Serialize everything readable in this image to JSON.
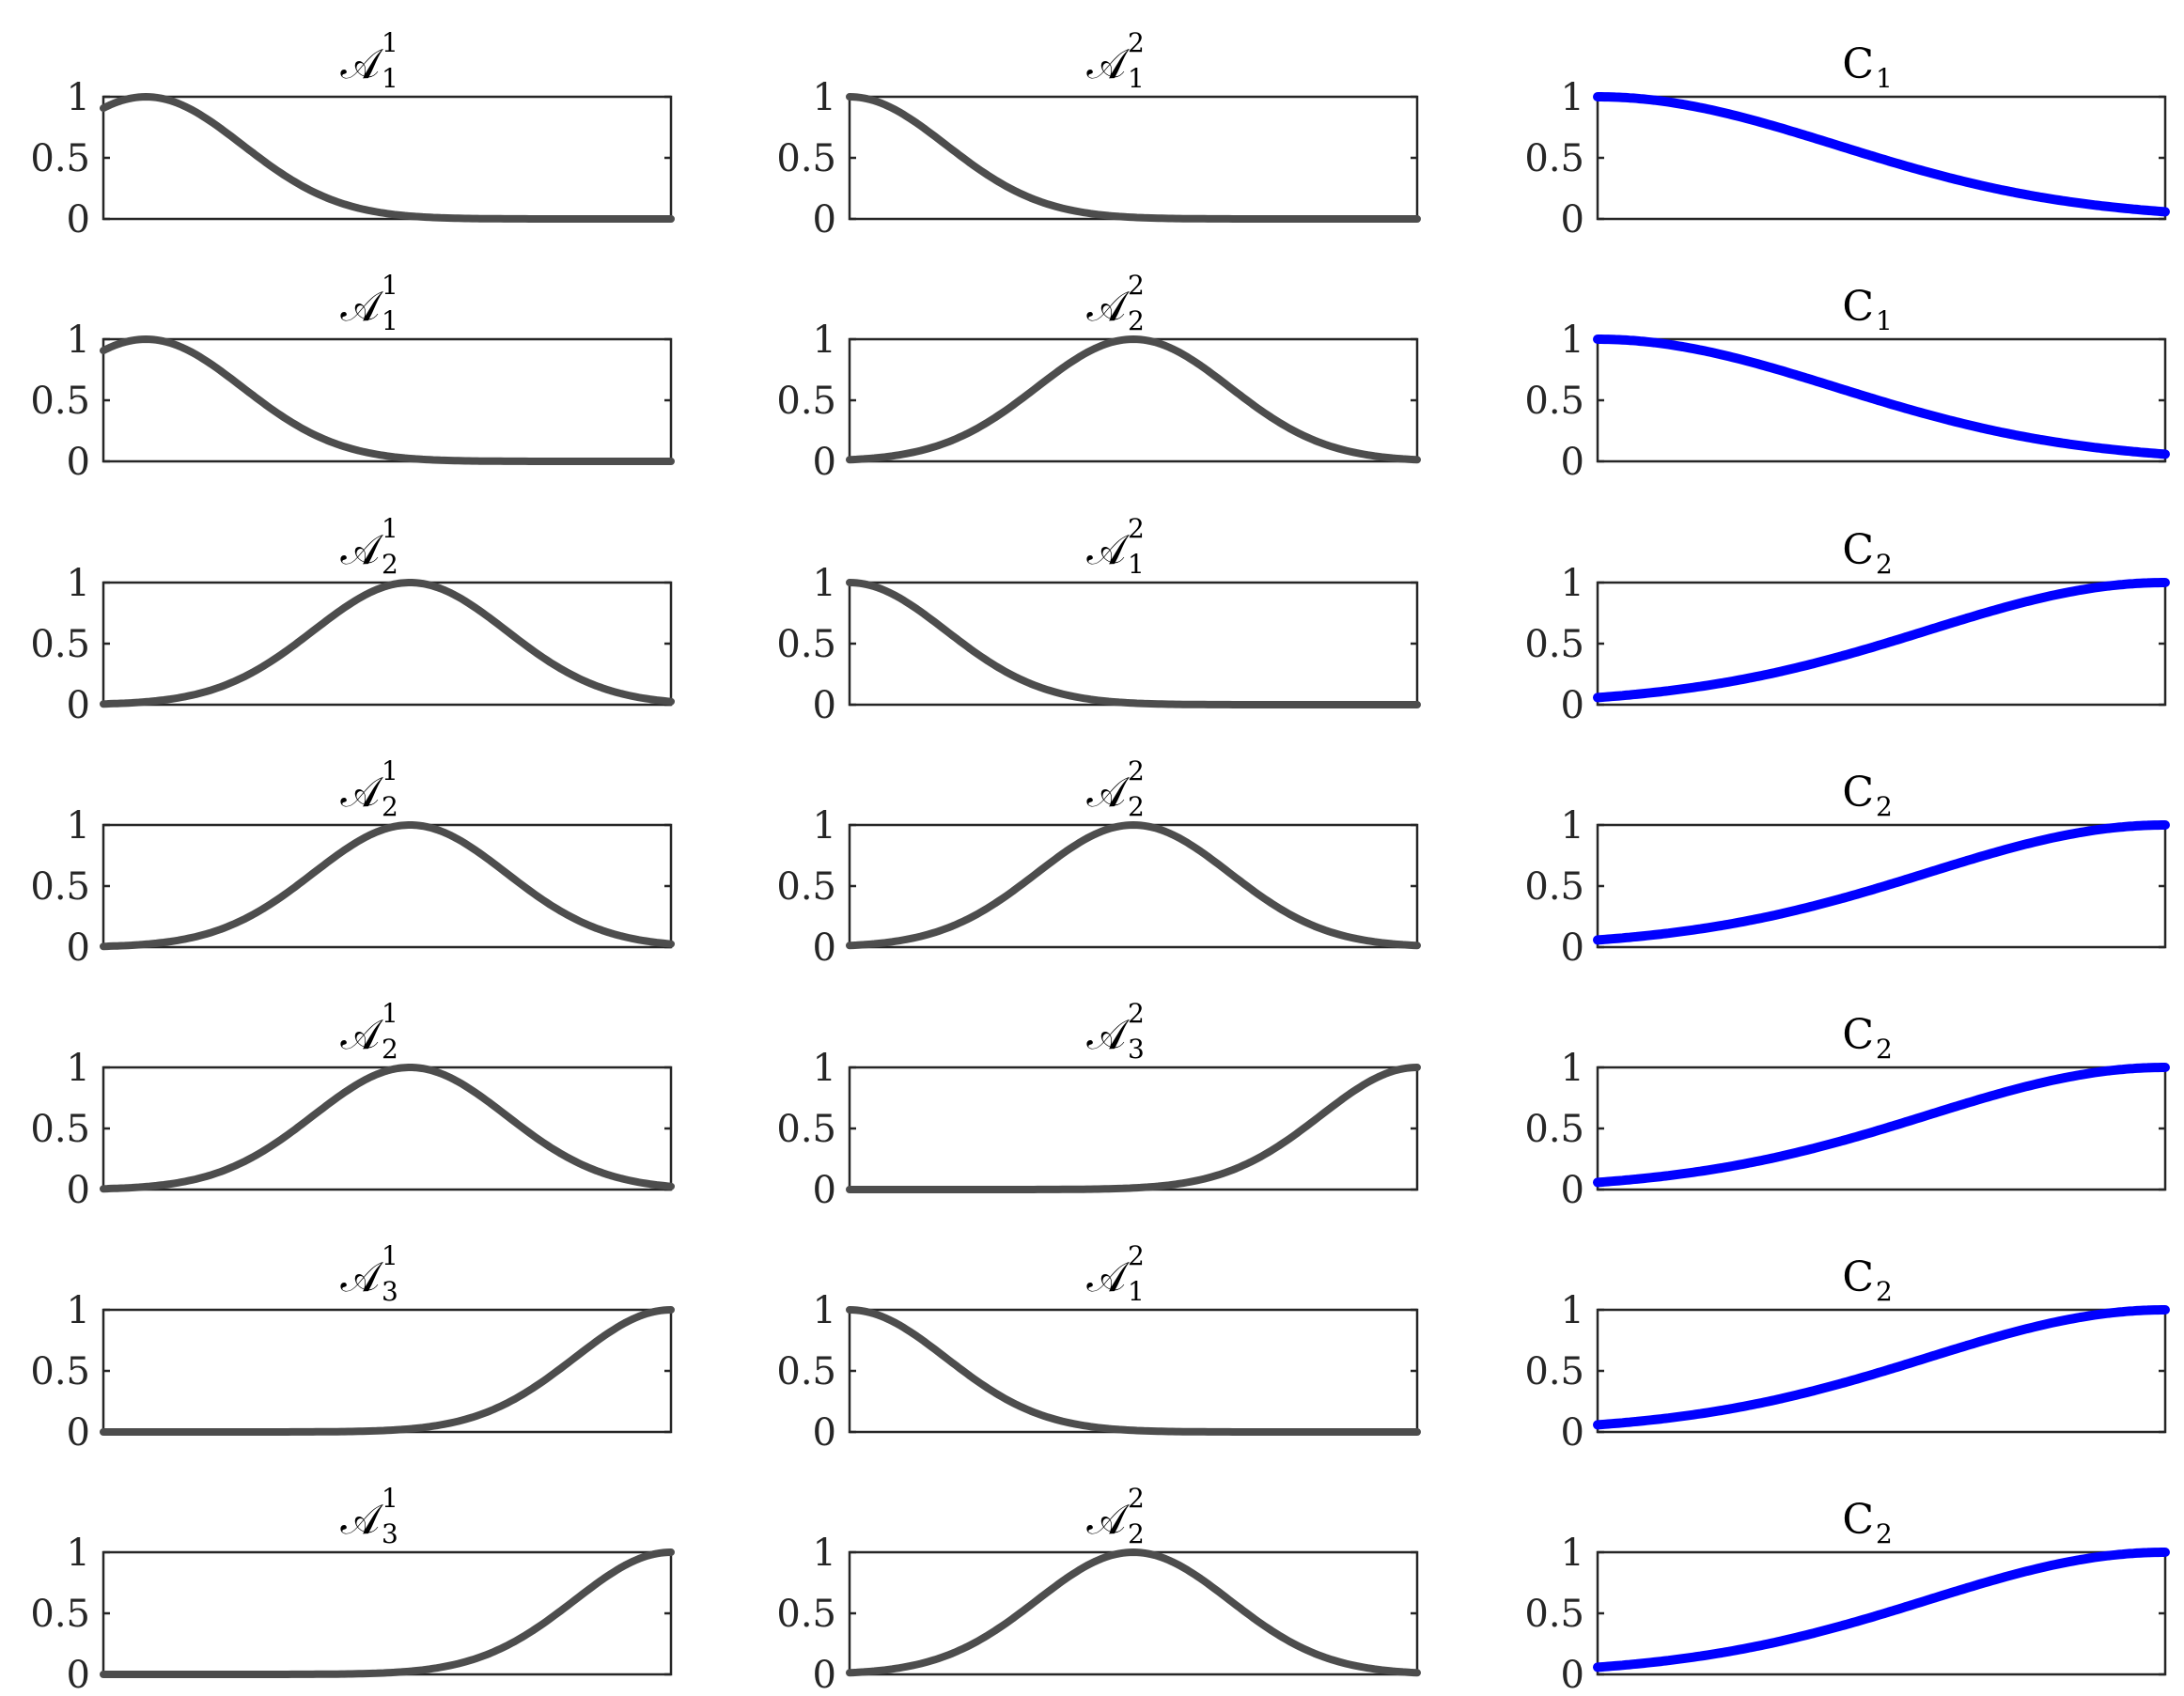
{
  "figure": {
    "rows": 7,
    "cols": 3
  },
  "chart_data": [
    {
      "type": "line",
      "panel": "r1c1",
      "title": {
        "main": "𝒜",
        "sub": "1",
        "sup": "1"
      },
      "curve": {
        "kind": "gauss",
        "center": 0.075,
        "width": 0.17
      },
      "ylim": [
        0,
        1
      ],
      "yticks": [
        "0",
        "0.5",
        "1"
      ],
      "color": "#4d4d4d"
    },
    {
      "type": "line",
      "panel": "r1c2",
      "title": {
        "main": "𝒜",
        "sub": "1",
        "sup": "2"
      },
      "curve": {
        "kind": "gauss",
        "center": 0.0,
        "width": 0.17
      },
      "ylim": [
        0,
        1
      ],
      "yticks": [
        "0",
        "0.5",
        "1"
      ],
      "color": "#4d4d4d"
    },
    {
      "type": "line",
      "panel": "r1c3",
      "title": {
        "main": "C",
        "sub": "1",
        "sup": ""
      },
      "curve": {
        "kind": "gauss",
        "center": 0.0,
        "width": 0.42
      },
      "ylim": [
        0,
        1
      ],
      "yticks": [
        "0",
        "0.5",
        "1"
      ],
      "color": "#0000ff"
    },
    {
      "type": "line",
      "panel": "r2c1",
      "title": {
        "main": "𝒜",
        "sub": "1",
        "sup": "1"
      },
      "curve": {
        "kind": "gauss",
        "center": 0.075,
        "width": 0.17
      },
      "ylim": [
        0,
        1
      ],
      "yticks": [
        "0",
        "0.5",
        "1"
      ],
      "color": "#4d4d4d"
    },
    {
      "type": "line",
      "panel": "r2c2",
      "title": {
        "main": "𝒜",
        "sub": "2",
        "sup": "2"
      },
      "curve": {
        "kind": "gauss",
        "center": 0.5,
        "width": 0.17
      },
      "ylim": [
        0,
        1
      ],
      "yticks": [
        "0",
        "0.5",
        "1"
      ],
      "color": "#4d4d4d"
    },
    {
      "type": "line",
      "panel": "r2c3",
      "title": {
        "main": "C",
        "sub": "1",
        "sup": ""
      },
      "curve": {
        "kind": "gauss",
        "center": 0.0,
        "width": 0.42
      },
      "ylim": [
        0,
        1
      ],
      "yticks": [
        "0",
        "0.5",
        "1"
      ],
      "color": "#0000ff"
    },
    {
      "type": "line",
      "panel": "r3c1",
      "title": {
        "main": "𝒜",
        "sub": "2",
        "sup": "1"
      },
      "curve": {
        "kind": "gauss",
        "center": 0.54,
        "width": 0.17
      },
      "ylim": [
        0,
        1
      ],
      "yticks": [
        "0",
        "0.5",
        "1"
      ],
      "color": "#4d4d4d"
    },
    {
      "type": "line",
      "panel": "r3c2",
      "title": {
        "main": "𝒜",
        "sub": "1",
        "sup": "2"
      },
      "curve": {
        "kind": "gauss",
        "center": 0.0,
        "width": 0.17
      },
      "ylim": [
        0,
        1
      ],
      "yticks": [
        "0",
        "0.5",
        "1"
      ],
      "color": "#4d4d4d"
    },
    {
      "type": "line",
      "panel": "r3c3",
      "title": {
        "main": "C",
        "sub": "2",
        "sup": ""
      },
      "curve": {
        "kind": "gauss",
        "center": 1.0,
        "width": 0.42
      },
      "ylim": [
        0,
        1
      ],
      "yticks": [
        "0",
        "0.5",
        "1"
      ],
      "color": "#0000ff"
    },
    {
      "type": "line",
      "panel": "r4c1",
      "title": {
        "main": "𝒜",
        "sub": "2",
        "sup": "1"
      },
      "curve": {
        "kind": "gauss",
        "center": 0.54,
        "width": 0.17
      },
      "ylim": [
        0,
        1
      ],
      "yticks": [
        "0",
        "0.5",
        "1"
      ],
      "color": "#4d4d4d"
    },
    {
      "type": "line",
      "panel": "r4c2",
      "title": {
        "main": "𝒜",
        "sub": "2",
        "sup": "2"
      },
      "curve": {
        "kind": "gauss",
        "center": 0.5,
        "width": 0.17
      },
      "ylim": [
        0,
        1
      ],
      "yticks": [
        "0",
        "0.5",
        "1"
      ],
      "color": "#4d4d4d"
    },
    {
      "type": "line",
      "panel": "r4c3",
      "title": {
        "main": "C",
        "sub": "2",
        "sup": ""
      },
      "curve": {
        "kind": "gauss",
        "center": 1.0,
        "width": 0.42
      },
      "ylim": [
        0,
        1
      ],
      "yticks": [
        "0",
        "0.5",
        "1"
      ],
      "color": "#0000ff"
    },
    {
      "type": "line",
      "panel": "r5c1",
      "title": {
        "main": "𝒜",
        "sub": "2",
        "sup": "1"
      },
      "curve": {
        "kind": "gauss",
        "center": 0.54,
        "width": 0.17
      },
      "ylim": [
        0,
        1
      ],
      "yticks": [
        "0",
        "0.5",
        "1"
      ],
      "color": "#4d4d4d"
    },
    {
      "type": "line",
      "panel": "r5c2",
      "title": {
        "main": "𝒜",
        "sub": "3",
        "sup": "2"
      },
      "curve": {
        "kind": "gauss",
        "center": 1.0,
        "width": 0.17
      },
      "ylim": [
        0,
        1
      ],
      "yticks": [
        "0",
        "0.5",
        "1"
      ],
      "color": "#4d4d4d"
    },
    {
      "type": "line",
      "panel": "r5c3",
      "title": {
        "main": "C",
        "sub": "2",
        "sup": ""
      },
      "curve": {
        "kind": "gauss",
        "center": 1.0,
        "width": 0.42
      },
      "ylim": [
        0,
        1
      ],
      "yticks": [
        "0",
        "0.5",
        "1"
      ],
      "color": "#0000ff"
    },
    {
      "type": "line",
      "panel": "r6c1",
      "title": {
        "main": "𝒜",
        "sub": "3",
        "sup": "1"
      },
      "curve": {
        "kind": "gauss",
        "center": 1.0,
        "width": 0.17
      },
      "ylim": [
        0,
        1
      ],
      "yticks": [
        "0",
        "0.5",
        "1"
      ],
      "color": "#4d4d4d"
    },
    {
      "type": "line",
      "panel": "r6c2",
      "title": {
        "main": "𝒜",
        "sub": "1",
        "sup": "2"
      },
      "curve": {
        "kind": "gauss",
        "center": 0.0,
        "width": 0.17
      },
      "ylim": [
        0,
        1
      ],
      "yticks": [
        "0",
        "0.5",
        "1"
      ],
      "color": "#4d4d4d"
    },
    {
      "type": "line",
      "panel": "r6c3",
      "title": {
        "main": "C",
        "sub": "2",
        "sup": ""
      },
      "curve": {
        "kind": "gauss",
        "center": 1.0,
        "width": 0.42
      },
      "ylim": [
        0,
        1
      ],
      "yticks": [
        "0",
        "0.5",
        "1"
      ],
      "color": "#0000ff"
    },
    {
      "type": "line",
      "panel": "r7c1",
      "title": {
        "main": "𝒜",
        "sub": "3",
        "sup": "1"
      },
      "curve": {
        "kind": "gauss",
        "center": 1.0,
        "width": 0.17
      },
      "ylim": [
        0,
        1
      ],
      "yticks": [
        "0",
        "0.5",
        "1"
      ],
      "color": "#4d4d4d"
    },
    {
      "type": "line",
      "panel": "r7c2",
      "title": {
        "main": "𝒜",
        "sub": "2",
        "sup": "2"
      },
      "curve": {
        "kind": "gauss",
        "center": 0.5,
        "width": 0.17
      },
      "ylim": [
        0,
        1
      ],
      "yticks": [
        "0",
        "0.5",
        "1"
      ],
      "color": "#4d4d4d"
    },
    {
      "type": "line",
      "panel": "r7c3",
      "title": {
        "main": "C",
        "sub": "2",
        "sup": ""
      },
      "curve": {
        "kind": "gauss",
        "center": 1.0,
        "width": 0.42
      },
      "ylim": [
        0,
        1
      ],
      "yticks": [
        "0",
        "0.5",
        "1"
      ],
      "color": "#0000ff"
    }
  ]
}
